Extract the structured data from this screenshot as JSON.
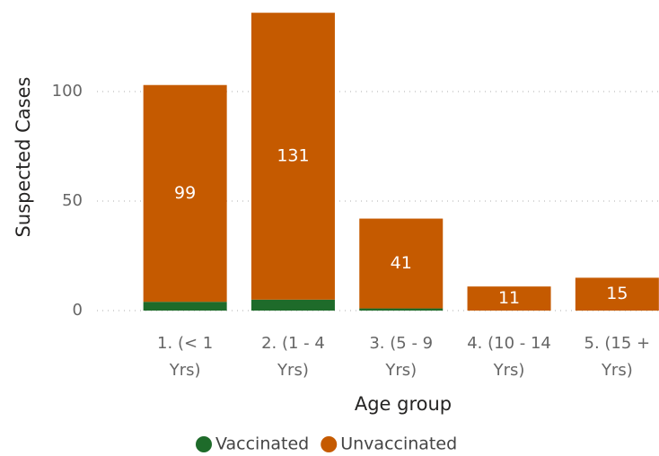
{
  "chart_data": {
    "type": "stacked_bar",
    "x_label": "Age group",
    "y_label": "Suspected Cases",
    "categories": [
      "1. (< 1 Yrs)",
      "2. (1 - 4 Yrs)",
      "3. (5 - 9 Yrs)",
      "4. (10 - 14 Yrs)",
      "5. (15 + Yrs)"
    ],
    "series": [
      {
        "name": "Vaccinated",
        "color": "#1e6b2a",
        "values": [
          4,
          5,
          1,
          0,
          0
        ]
      },
      {
        "name": "Unvaccinated",
        "color": "#c55a00",
        "values": [
          99,
          131,
          41,
          11,
          15
        ],
        "data_labels": true
      }
    ],
    "ylim": [
      0,
      136.5
    ],
    "yticks": [
      0,
      50,
      100
    ],
    "grid": true,
    "legend": "bottom"
  }
}
